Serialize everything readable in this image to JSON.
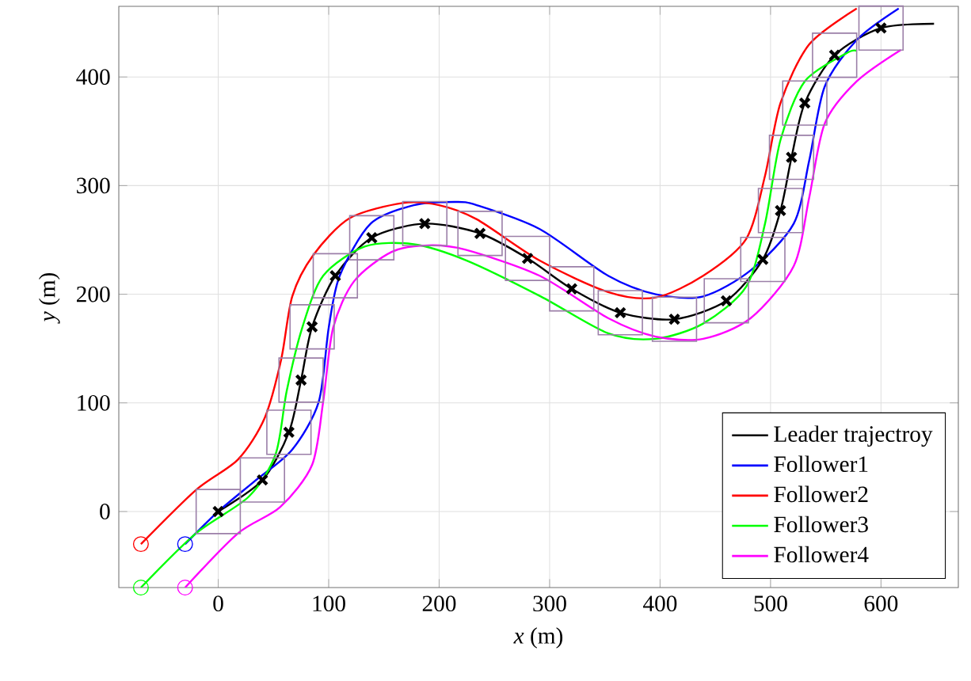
{
  "chart_data": {
    "type": "line",
    "xlabel": "*x* (m)",
    "ylabel": "*y* (m)",
    "xlim": [
      -90,
      670
    ],
    "ylim": [
      -70,
      465
    ],
    "xticks": [
      0,
      100,
      200,
      300,
      400,
      500,
      600
    ],
    "yticks": [
      0,
      100,
      200,
      300,
      400
    ],
    "grid": true,
    "legend": "bottom right",
    "series": [
      {
        "type": "scatter",
        "marker": "square",
        "color": "#9b7fa8",
        "x": [
          0,
          40,
          64,
          75,
          85,
          106,
          139,
          187,
          237,
          280,
          320,
          364,
          413,
          460,
          493,
          509,
          519,
          531,
          558,
          600
        ],
        "values": [
          0,
          29,
          73,
          121,
          170,
          217,
          252,
          265,
          256,
          233,
          205,
          183,
          177,
          194,
          232,
          277,
          326,
          376,
          420,
          445
        ]
      },
      {
        "name": "Leader trajectroy",
        "color": "#000000",
        "marker": "cross",
        "x": [
          0,
          40,
          64,
          75,
          85,
          106,
          139,
          187,
          237,
          280,
          320,
          364,
          413,
          460,
          493,
          509,
          519,
          531,
          558,
          600,
          648
        ],
        "values": [
          0,
          29,
          73,
          121,
          170,
          217,
          252,
          265,
          256,
          233,
          205,
          183,
          177,
          194,
          232,
          277,
          326,
          376,
          420,
          445,
          449
        ]
      },
      {
        "name": "Follower1",
        "color": "#0000ff",
        "x": [
          -30,
          0,
          33,
          67,
          91,
          100,
          110,
          138,
          177,
          214,
          234,
          291,
          353,
          396,
          439,
          482,
          521,
          535,
          549,
          578,
          616
        ],
        "values": [
          -30,
          0,
          28,
          57,
          101,
          169,
          217,
          265,
          282,
          285,
          282,
          260,
          217,
          200,
          198,
          222,
          265,
          323,
          391,
          434,
          463
        ]
      },
      {
        "name": "Follower2",
        "color": "#ff0000",
        "x": [
          -70,
          -20,
          18,
          42,
          57,
          67,
          86,
          119,
          167,
          200,
          234,
          291,
          353,
          396,
          439,
          478,
          495,
          509,
          535,
          578
        ],
        "values": [
          -30,
          20,
          48,
          86,
          140,
          198,
          236,
          270,
          284,
          282,
          269,
          231,
          202,
          197,
          217,
          251,
          309,
          376,
          430,
          463
        ]
      },
      {
        "name": "Follower3",
        "color": "#00ff00",
        "x": [
          -70,
          -20,
          28,
          52,
          62,
          76,
          95,
          133,
          177,
          225,
          292,
          353,
          396,
          439,
          478,
          495,
          509,
          531,
          569,
          578
        ],
        "values": [
          -70,
          -20,
          14,
          53,
          111,
          169,
          217,
          244,
          246,
          231,
          198,
          164,
          159,
          173,
          207,
          265,
          342,
          396,
          422,
          424
        ]
      },
      {
        "name": "Follower4",
        "color": "#ff00ff",
        "x": [
          -30,
          18,
          56,
          85,
          95,
          104,
          123,
          157,
          190,
          224,
          291,
          353,
          396,
          439,
          482,
          521,
          535,
          549,
          578,
          618
        ],
        "values": [
          -70,
          -20,
          4,
          43,
          101,
          169,
          212,
          239,
          245,
          241,
          217,
          178,
          161,
          159,
          178,
          226,
          289,
          357,
          396,
          425
        ]
      },
      {
        "type": "scatter",
        "marker": "circle",
        "color": "#0000ff",
        "x": [
          -30
        ],
        "values": [
          -30
        ]
      },
      {
        "type": "scatter",
        "marker": "circle",
        "color": "#ff0000",
        "x": [
          -70
        ],
        "values": [
          -30
        ]
      },
      {
        "type": "scatter",
        "marker": "circle",
        "color": "#00ff00",
        "x": [
          -70
        ],
        "values": [
          -70
        ]
      },
      {
        "type": "scatter",
        "marker": "circle",
        "color": "#ff00ff",
        "x": [
          -30
        ],
        "values": [
          -70
        ]
      }
    ]
  }
}
